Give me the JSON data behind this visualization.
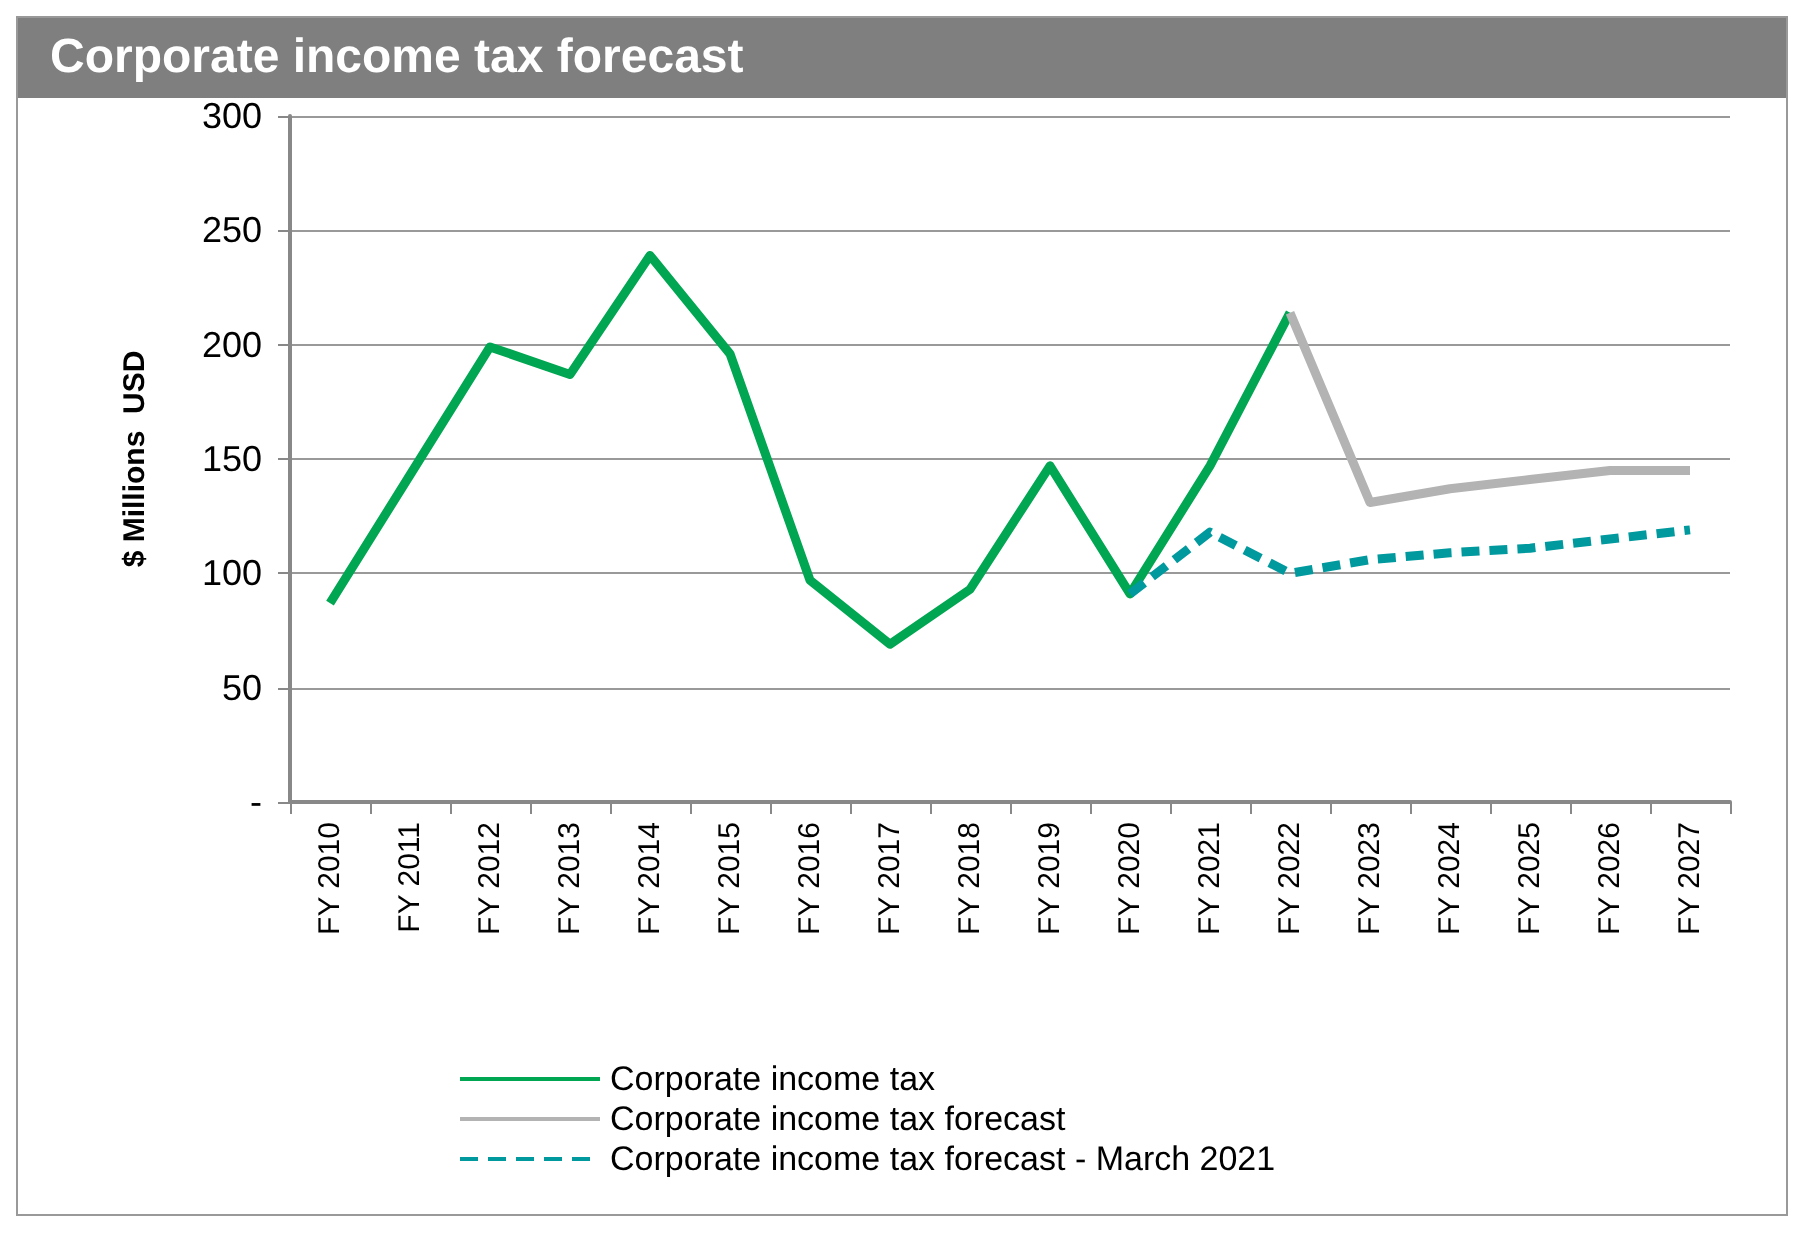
{
  "chart_data": {
    "type": "line",
    "title": "Corporate income tax forecast",
    "ylabel": "$ Millions  USD",
    "categories": [
      "FY 2010",
      "FY 2011",
      "FY 2012",
      "FY 2013",
      "FY 2014",
      "FY 2015",
      "FY 2016",
      "FY 2017",
      "FY 2018",
      "FY 2019",
      "FY 2020",
      "FY 2021",
      "FY 2022",
      "FY 2023",
      "FY 2024",
      "FY 2025",
      "FY 2026",
      "FY 2027"
    ],
    "series": [
      {
        "name": "Corporate income tax",
        "color": "#00a651",
        "values": [
          87,
          143,
          199,
          187,
          239,
          196,
          97,
          69,
          93,
          147,
          91,
          147,
          214,
          null,
          null,
          null,
          null,
          null
        ]
      },
      {
        "name": "Corporate income tax forecast",
        "color": "#b3b3b3",
        "values": [
          null,
          null,
          null,
          null,
          null,
          null,
          null,
          null,
          null,
          null,
          null,
          null,
          214,
          131,
          137,
          141,
          145,
          145
        ]
      },
      {
        "name": "Corporate income tax forecast - March 2021",
        "color": "#00999e",
        "line_style": "dashed",
        "values": [
          null,
          null,
          null,
          null,
          null,
          null,
          null,
          null,
          null,
          null,
          91,
          118,
          100,
          106,
          109,
          111,
          115,
          119
        ]
      }
    ],
    "ylim": [
      0,
      300
    ],
    "yticks": [
      {
        "value": 0,
        "label": "-"
      },
      50,
      100,
      150,
      200,
      250,
      300
    ],
    "grid": "y",
    "legend": "bottom",
    "marker": "none",
    "line_style": "solid"
  }
}
